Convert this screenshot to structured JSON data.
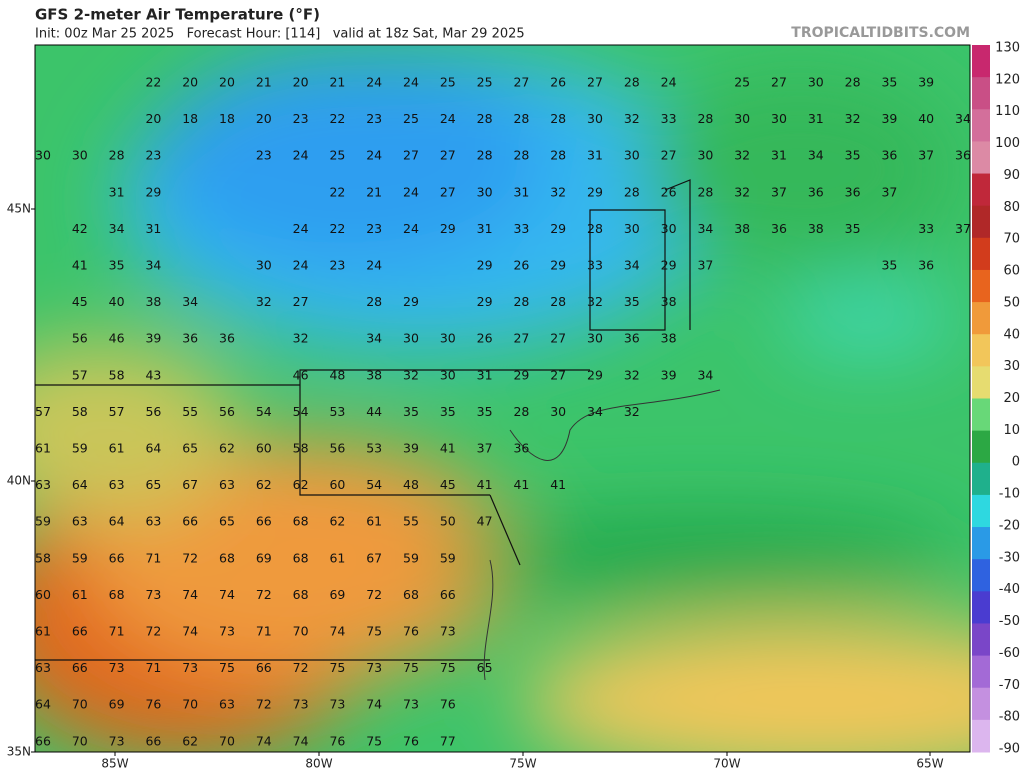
{
  "header": {
    "title": "GFS 2-meter Air Temperature (°F)",
    "subtitle": "Init: 00z Mar 25 2025   Forecast Hour: [114]   valid at 18z Sat, Mar 29 2025",
    "site": "TROPICALTIDBITS.COM"
  },
  "lat_labels": [
    "45N",
    "40N",
    "35N"
  ],
  "lon_labels": [
    "85W",
    "80W",
    "75W",
    "70W",
    "65W"
  ],
  "colorbar": {
    "labels": [
      "130",
      "120",
      "110",
      "100",
      "90",
      "80",
      "70",
      "60",
      "50",
      "40",
      "30",
      "20",
      "10",
      "0",
      "-10",
      "-20",
      "-30",
      "-40",
      "-50",
      "-60",
      "-70",
      "-80",
      "-90"
    ],
    "colors": [
      "#c8286e",
      "#c94f86",
      "#d36f9b",
      "#dc8aa5",
      "#c0283a",
      "#b02828",
      "#d23c1c",
      "#e8641e",
      "#f09a3a",
      "#f2c65a",
      "#e6dc70",
      "#68d878",
      "#2ca844",
      "#1fb08c",
      "#2ed8e0",
      "#2a9ae6",
      "#2f62e0",
      "#4a3cd0",
      "#7a46c8",
      "#a36ad6",
      "#c490e0",
      "#dcb6ee"
    ]
  },
  "station_rows": [
    [
      null,
      null,
      null,
      22,
      20,
      20,
      21,
      20,
      21,
      24,
      24,
      25,
      25,
      27,
      26,
      27,
      28,
      24,
      null,
      25,
      27,
      30,
      28,
      35,
      39,
      null
    ],
    [
      null,
      null,
      null,
      20,
      18,
      18,
      20,
      23,
      22,
      23,
      25,
      24,
      28,
      28,
      28,
      30,
      32,
      33,
      28,
      30,
      30,
      31,
      32,
      39,
      40,
      34
    ],
    [
      30,
      30,
      28,
      23,
      null,
      null,
      23,
      24,
      25,
      24,
      27,
      27,
      28,
      28,
      28,
      31,
      30,
      27,
      30,
      32,
      31,
      34,
      35,
      36,
      37,
      36
    ],
    [
      null,
      null,
      31,
      29,
      null,
      null,
      null,
      null,
      22,
      21,
      24,
      27,
      30,
      31,
      32,
      29,
      28,
      26,
      28,
      32,
      37,
      36,
      36,
      37,
      null,
      null
    ],
    [
      null,
      42,
      34,
      31,
      null,
      null,
      null,
      24,
      22,
      23,
      24,
      29,
      31,
      33,
      29,
      28,
      30,
      30,
      34,
      38,
      36,
      38,
      35,
      null,
      33,
      37
    ],
    [
      null,
      41,
      35,
      34,
      null,
      null,
      30,
      24,
      23,
      24,
      null,
      null,
      29,
      26,
      29,
      33,
      34,
      29,
      37,
      null,
      null,
      null,
      null,
      35,
      36,
      null
    ],
    [
      null,
      45,
      40,
      38,
      34,
      null,
      32,
      27,
      null,
      28,
      29,
      null,
      29,
      28,
      28,
      32,
      35,
      38,
      null,
      null,
      null,
      null,
      null,
      null,
      null,
      null
    ],
    [
      null,
      56,
      46,
      39,
      36,
      36,
      null,
      32,
      null,
      34,
      30,
      30,
      26,
      27,
      27,
      30,
      36,
      38,
      null,
      null,
      null,
      null,
      null,
      null,
      null,
      null
    ],
    [
      null,
      57,
      58,
      43,
      null,
      null,
      null,
      46,
      48,
      38,
      32,
      30,
      31,
      29,
      27,
      29,
      32,
      39,
      34,
      null,
      null,
      null,
      null,
      null,
      null,
      null
    ],
    [
      57,
      58,
      57,
      56,
      55,
      56,
      54,
      54,
      53,
      44,
      35,
      35,
      35,
      28,
      30,
      34,
      32,
      null,
      null,
      null,
      null,
      null,
      null,
      null,
      null,
      null
    ],
    [
      61,
      59,
      61,
      64,
      65,
      62,
      60,
      58,
      56,
      53,
      39,
      41,
      37,
      36,
      null,
      null,
      null,
      null,
      null,
      null,
      null,
      null,
      null,
      null,
      null,
      null
    ],
    [
      63,
      64,
      63,
      65,
      67,
      63,
      62,
      62,
      60,
      54,
      48,
      45,
      41,
      41,
      41,
      null,
      null,
      null,
      null,
      null,
      null,
      null,
      null,
      null,
      null,
      null
    ],
    [
      59,
      63,
      64,
      63,
      66,
      65,
      66,
      68,
      62,
      61,
      55,
      50,
      47,
      null,
      null,
      null,
      null,
      null,
      null,
      null,
      null,
      null,
      null,
      null,
      null,
      null
    ],
    [
      58,
      59,
      66,
      71,
      72,
      68,
      69,
      68,
      61,
      67,
      59,
      59,
      null,
      null,
      null,
      null,
      null,
      null,
      null,
      null,
      null,
      null,
      null,
      null,
      null,
      null
    ],
    [
      60,
      61,
      68,
      73,
      74,
      74,
      72,
      68,
      69,
      72,
      68,
      66,
      null,
      null,
      null,
      null,
      null,
      null,
      null,
      null,
      null,
      null,
      null,
      null,
      null,
      null
    ],
    [
      61,
      66,
      71,
      72,
      74,
      73,
      71,
      70,
      74,
      75,
      76,
      73,
      null,
      null,
      null,
      null,
      null,
      null,
      null,
      null,
      null,
      null,
      null,
      null,
      null,
      null
    ],
    [
      63,
      66,
      73,
      71,
      73,
      75,
      66,
      72,
      75,
      73,
      75,
      75,
      65,
      null,
      null,
      null,
      null,
      null,
      null,
      null,
      null,
      null,
      null,
      null,
      null,
      null
    ],
    [
      64,
      70,
      69,
      76,
      70,
      63,
      72,
      73,
      73,
      74,
      73,
      76,
      null,
      null,
      null,
      null,
      null,
      null,
      null,
      null,
      null,
      null,
      null,
      null,
      null,
      null
    ],
    [
      66,
      70,
      73,
      66,
      62,
      70,
      74,
      74,
      76,
      75,
      76,
      77,
      null,
      null,
      null,
      null,
      null,
      null,
      null,
      null,
      null,
      null,
      null,
      null,
      null,
      null
    ]
  ]
}
